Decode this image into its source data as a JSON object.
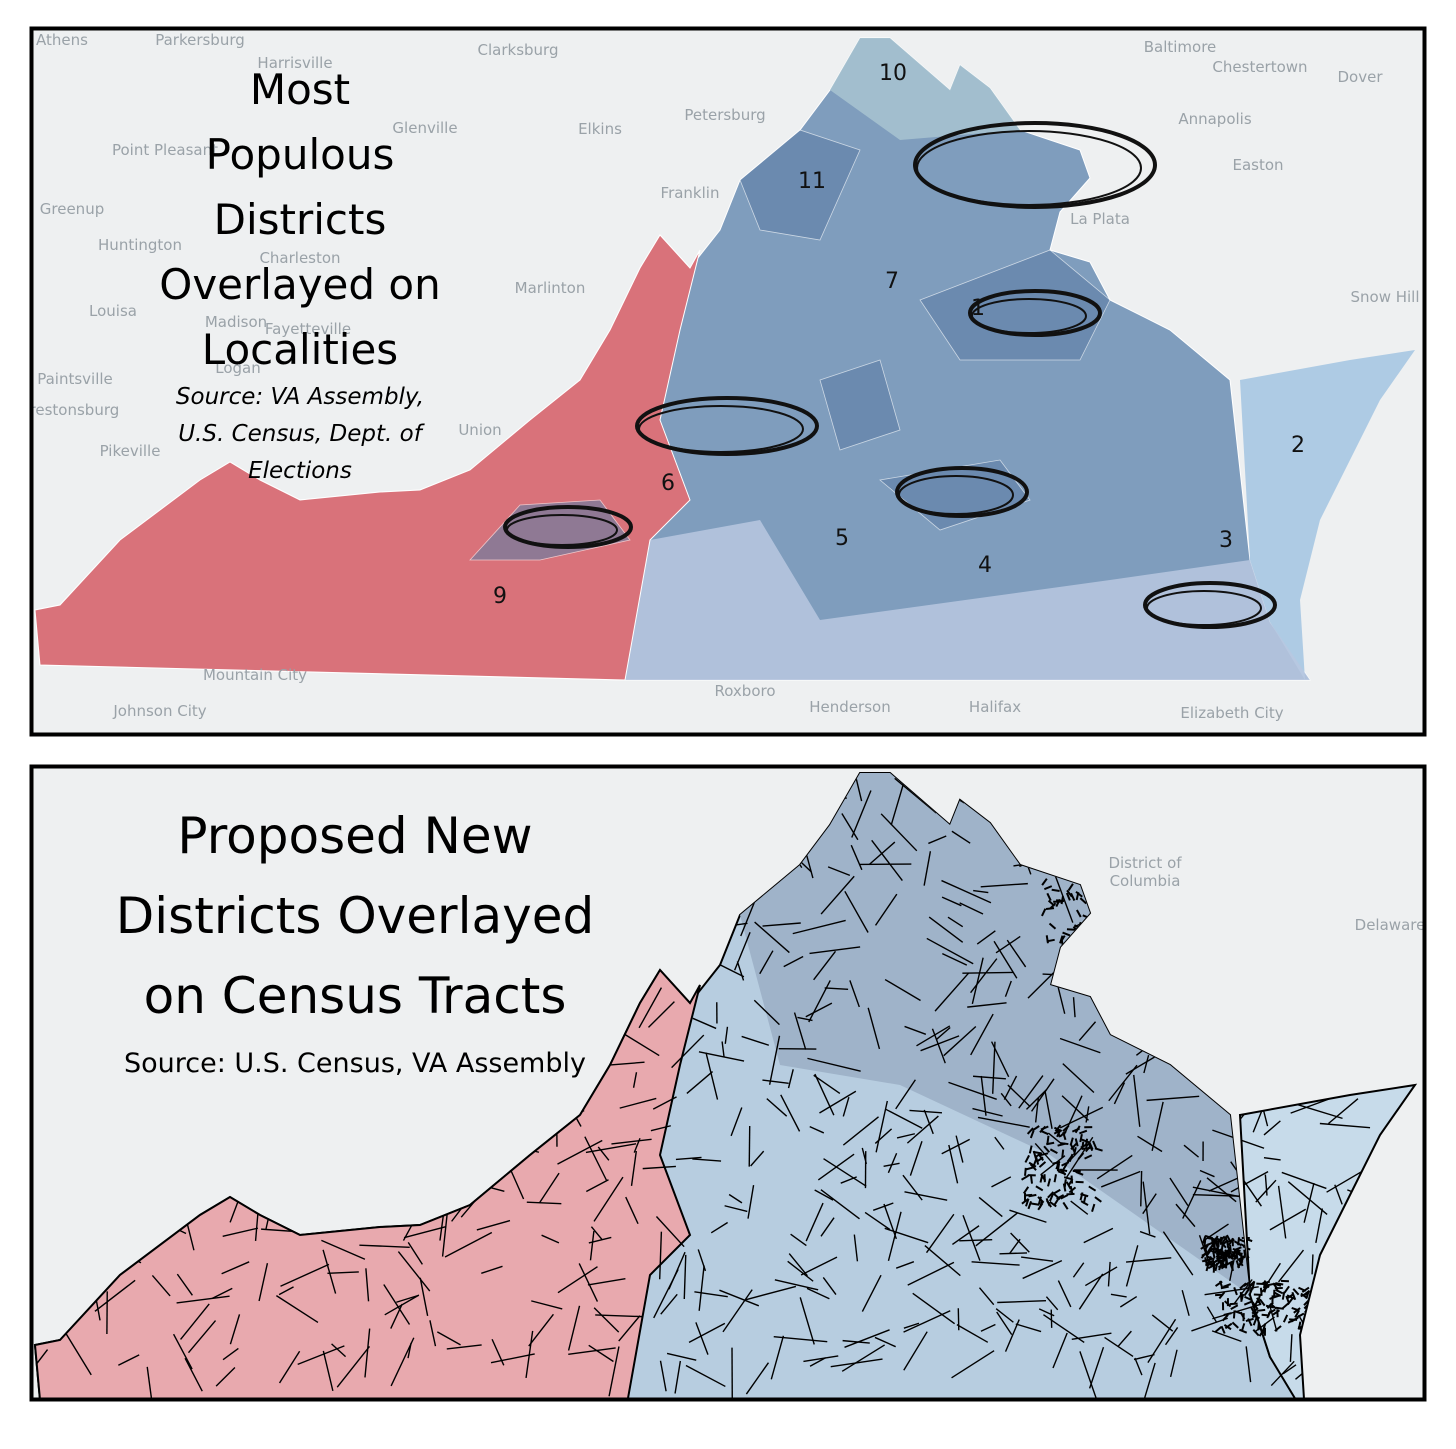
{
  "panels": [
    {
      "title_lines": [
        "Most",
        "Populous",
        "Districts",
        "Overlayed on",
        "Localities"
      ],
      "source_lines": [
        "Source: VA Assembly,",
        "U.S. Census, Dept. of",
        "Elections"
      ],
      "district_labels": [
        "10",
        "11",
        "7",
        "1",
        "6",
        "5",
        "9",
        "4",
        "3",
        "2"
      ],
      "place_labels": [
        "Athens",
        "Parkersburg",
        "Harrisville",
        "Clarksburg",
        "Baltimore",
        "Chestertown",
        "Dover",
        "Annapolis",
        "Glenville",
        "Elkins",
        "Petersburg",
        "Point Pleasant",
        "Easton",
        "Franklin",
        "Greenup",
        "Huntington",
        "Charleston",
        "Marlinton",
        "La Plata",
        "Louisa",
        "Madison",
        "Fayetteville",
        "Snow Hill",
        "Paintsville",
        "Logan",
        "Prestonsburg",
        "Union",
        "Pikeville",
        "Mountain City",
        "Johnson City",
        "Roxboro",
        "Henderson",
        "Halifax",
        "Elizabeth City"
      ]
    },
    {
      "title_lines": [
        "Proposed New",
        "Districts Overlayed",
        "on Census Tracts"
      ],
      "source": "Source: U.S. Census, VA Assembly",
      "place_labels": [
        "District of",
        "Columbia",
        "Delaware"
      ]
    }
  ]
}
